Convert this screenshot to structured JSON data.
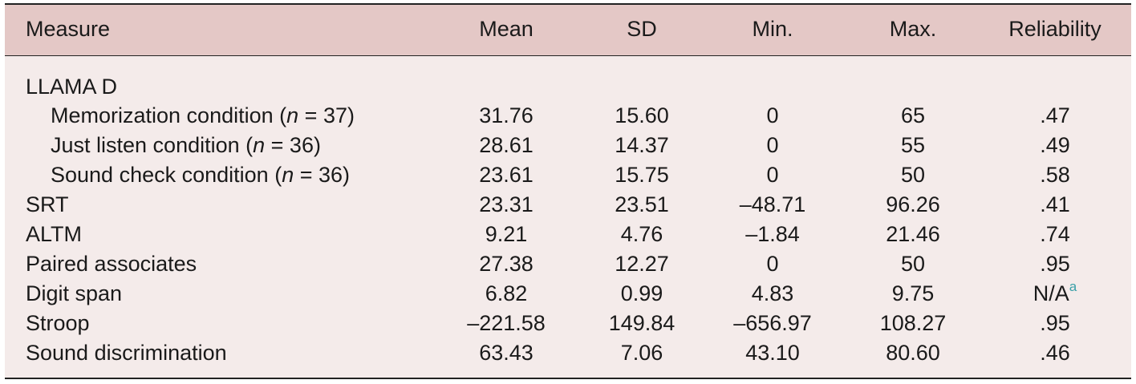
{
  "headers": {
    "measure": "Measure",
    "mean": "Mean",
    "sd": "SD",
    "min": "Min.",
    "max": "Max.",
    "reliability": "Reliability"
  },
  "group_label": "LLAMA D",
  "rows": [
    {
      "pre": "Memorization condition (",
      "n_var": "n",
      "post": " = 37)",
      "mean": "31.76",
      "sd": "15.60",
      "min": "0",
      "max": "65",
      "reliability": ".47"
    },
    {
      "pre": "Just listen condition (",
      "n_var": "n",
      "post": " = 36)",
      "mean": "28.61",
      "sd": "14.37",
      "min": "0",
      "max": "55",
      "reliability": ".49"
    },
    {
      "pre": "Sound check condition (",
      "n_var": "n",
      "post": " = 36)",
      "mean": "23.61",
      "sd": "15.75",
      "min": "0",
      "max": "50",
      "reliability": ".58"
    },
    {
      "label": "SRT",
      "mean": "23.31",
      "sd": "23.51",
      "min": "–48.71",
      "max": "96.26",
      "reliability": ".41"
    },
    {
      "label": "ALTM",
      "mean": "9.21",
      "sd": "4.76",
      "min": "–1.84",
      "max": "21.46",
      "reliability": ".74"
    },
    {
      "label": "Paired associates",
      "mean": "27.38",
      "sd": "12.27",
      "min": "0",
      "max": "50",
      "reliability": ".95"
    },
    {
      "label": "Digit span",
      "mean": "6.82",
      "sd": "0.99",
      "min": "4.83",
      "max": "9.75",
      "reliability": "N/A",
      "reliability_note": "a"
    },
    {
      "label": "Stroop",
      "mean": "–221.58",
      "sd": "149.84",
      "min": "–656.97",
      "max": "108.27",
      "reliability": ".95"
    },
    {
      "label": "Sound discrimination",
      "mean": "63.43",
      "sd": "7.06",
      "min": "43.10",
      "max": "80.60",
      "reliability": ".46"
    }
  ]
}
